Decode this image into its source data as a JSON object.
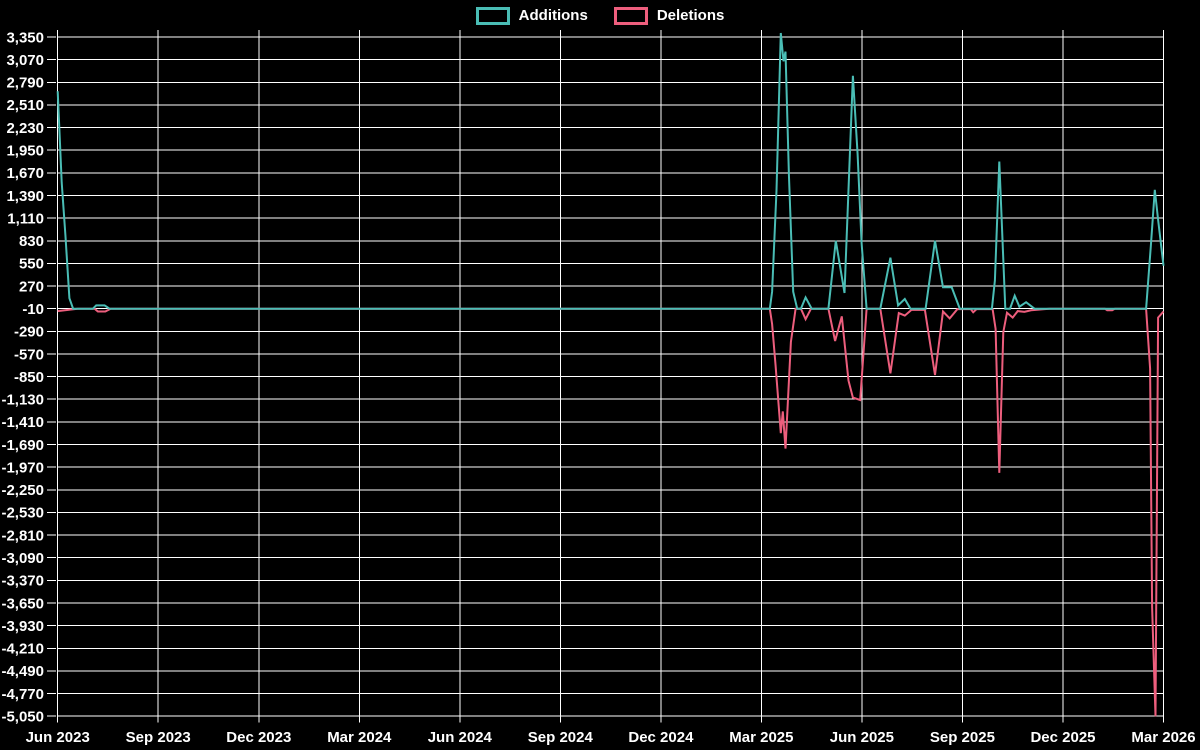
{
  "chart_data": {
    "type": "line",
    "title": "",
    "background": "#000000",
    "grid_color": "#ffffff",
    "text_color": "#ffffff",
    "grid": true,
    "legend_position": "top-center",
    "x_axis": {
      "unit": "months since Jun 2023",
      "range_months": [
        0,
        33
      ],
      "tick_labels": [
        "Jun 2023",
        "Sep 2023",
        "Dec 2023",
        "Mar 2024",
        "Jun 2024",
        "Sep 2024",
        "Dec 2024",
        "Mar 2025",
        "Jun 2025",
        "Sep 2025",
        "Dec 2025",
        "Mar 2026"
      ],
      "tick_positions_months": [
        0,
        3,
        6,
        9,
        12,
        15,
        18,
        21,
        24,
        27,
        30,
        33
      ]
    },
    "y_axis": {
      "min": -5050,
      "max": 3350,
      "tick_step": 280,
      "ticks": [
        3350,
        3070,
        2790,
        2510,
        2230,
        1950,
        1670,
        1390,
        1110,
        830,
        550,
        270,
        -10,
        -290,
        -570,
        -850,
        -1130,
        -1410,
        -1690,
        -1970,
        -2250,
        -2530,
        -2810,
        -3090,
        -3370,
        -3650,
        -3930,
        -4210,
        -4490,
        -4770,
        -5050
      ]
    },
    "series": [
      {
        "name": "Additions",
        "color": "#4abdb5",
        "points": [
          [
            0.0,
            2680
          ],
          [
            0.12,
            1550
          ],
          [
            0.23,
            900
          ],
          [
            0.35,
            120
          ],
          [
            0.46,
            -10
          ],
          [
            1.05,
            -10
          ],
          [
            1.15,
            30
          ],
          [
            1.4,
            30
          ],
          [
            1.55,
            -10
          ],
          [
            21.25,
            -10
          ],
          [
            21.32,
            200
          ],
          [
            21.45,
            1450
          ],
          [
            21.58,
            3400
          ],
          [
            21.66,
            3050
          ],
          [
            21.72,
            3170
          ],
          [
            21.82,
            1650
          ],
          [
            21.95,
            200
          ],
          [
            22.07,
            -10
          ],
          [
            22.18,
            -10
          ],
          [
            22.32,
            130
          ],
          [
            22.5,
            -10
          ],
          [
            23.0,
            -10
          ],
          [
            23.22,
            830
          ],
          [
            23.48,
            185
          ],
          [
            23.73,
            2870
          ],
          [
            23.87,
            1900
          ],
          [
            23.99,
            800
          ],
          [
            24.14,
            -10
          ],
          [
            24.55,
            -10
          ],
          [
            24.85,
            620
          ],
          [
            25.08,
            30
          ],
          [
            25.28,
            110
          ],
          [
            25.45,
            -10
          ],
          [
            25.9,
            -10
          ],
          [
            26.18,
            830
          ],
          [
            26.42,
            255
          ],
          [
            26.68,
            255
          ],
          [
            26.92,
            -10
          ],
          [
            27.88,
            -10
          ],
          [
            27.97,
            340
          ],
          [
            28.1,
            1810
          ],
          [
            28.28,
            -10
          ],
          [
            28.42,
            -10
          ],
          [
            28.56,
            150
          ],
          [
            28.7,
            15
          ],
          [
            28.9,
            70
          ],
          [
            29.15,
            -10
          ],
          [
            32.48,
            -10
          ],
          [
            32.62,
            760
          ],
          [
            32.74,
            1460
          ],
          [
            32.84,
            1090
          ],
          [
            33.0,
            520
          ]
        ]
      },
      {
        "name": "Deletions",
        "color": "#ed5e7d",
        "points": [
          [
            0.0,
            -40
          ],
          [
            0.4,
            -20
          ],
          [
            0.6,
            -10
          ],
          [
            1.1,
            -10
          ],
          [
            1.2,
            -45
          ],
          [
            1.42,
            -45
          ],
          [
            1.58,
            -10
          ],
          [
            21.25,
            -10
          ],
          [
            21.32,
            -200
          ],
          [
            21.42,
            -700
          ],
          [
            21.58,
            -1550
          ],
          [
            21.64,
            -1280
          ],
          [
            21.72,
            -1740
          ],
          [
            21.88,
            -420
          ],
          [
            22.02,
            -10
          ],
          [
            22.18,
            -10
          ],
          [
            22.32,
            -140
          ],
          [
            22.48,
            -10
          ],
          [
            23.0,
            -10
          ],
          [
            23.2,
            -410
          ],
          [
            23.4,
            -105
          ],
          [
            23.6,
            -900
          ],
          [
            23.73,
            -1110
          ],
          [
            23.95,
            -1140
          ],
          [
            24.14,
            -10
          ],
          [
            24.55,
            -10
          ],
          [
            24.85,
            -810
          ],
          [
            25.1,
            -65
          ],
          [
            25.28,
            -95
          ],
          [
            25.48,
            -25
          ],
          [
            25.88,
            -25
          ],
          [
            26.18,
            -830
          ],
          [
            26.42,
            -45
          ],
          [
            26.62,
            -130
          ],
          [
            26.85,
            -15
          ],
          [
            27.25,
            -15
          ],
          [
            27.32,
            -55
          ],
          [
            27.42,
            -15
          ],
          [
            27.9,
            -15
          ],
          [
            27.99,
            -260
          ],
          [
            28.1,
            -2040
          ],
          [
            28.22,
            -300
          ],
          [
            28.33,
            -60
          ],
          [
            28.5,
            -120
          ],
          [
            28.65,
            -40
          ],
          [
            28.85,
            -50
          ],
          [
            29.05,
            -30
          ],
          [
            29.45,
            -15
          ],
          [
            29.6,
            -10
          ],
          [
            31.25,
            -10
          ],
          [
            31.32,
            -30
          ],
          [
            31.47,
            -30
          ],
          [
            31.55,
            -10
          ],
          [
            32.48,
            -10
          ],
          [
            32.6,
            -750
          ],
          [
            32.66,
            -3700
          ],
          [
            32.76,
            -5050
          ],
          [
            32.84,
            -120
          ],
          [
            33.0,
            -45
          ]
        ]
      }
    ]
  }
}
